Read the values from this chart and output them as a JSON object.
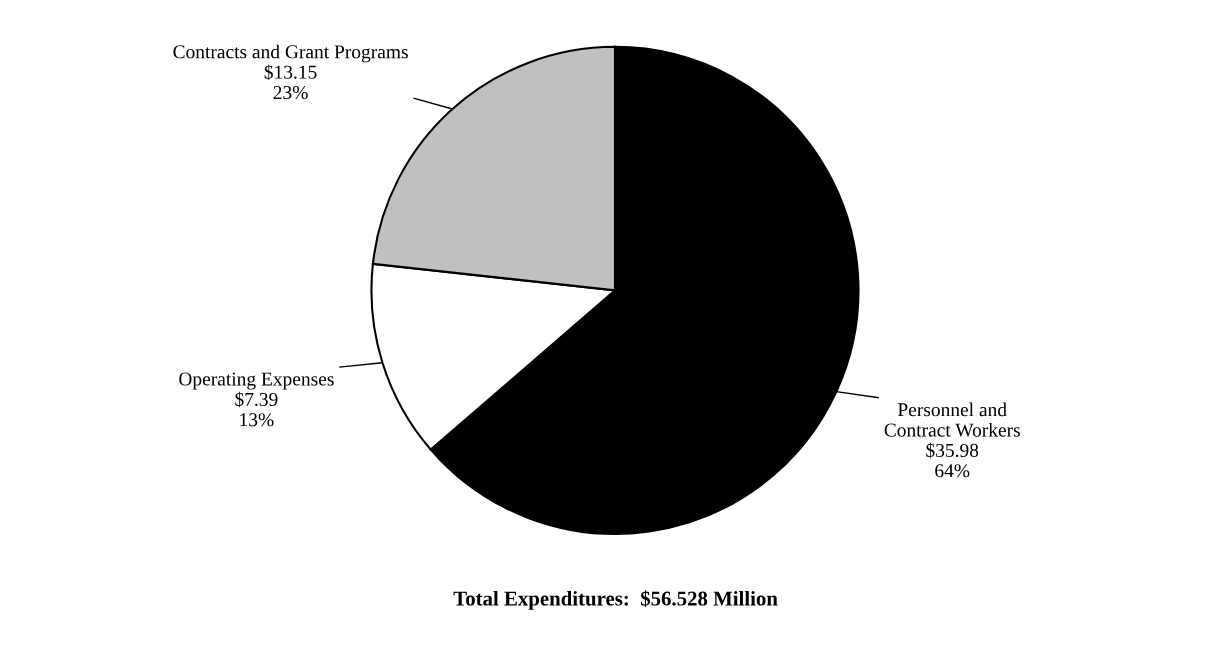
{
  "chart_data": {
    "type": "pie",
    "title": "Total Expenditures:  $56.528 Million",
    "categories": [
      "Personnel and\nContract Workers",
      "Operating Expenses",
      "Contracts and Grant Programs"
    ],
    "values": [
      35.98,
      7.39,
      13.15
    ],
    "colors": [
      "#000000",
      "#ffffff",
      "#c0c0c0"
    ],
    "value_labels": [
      "$35.98\n64%",
      "$7.39\n13%",
      "$13.15\n23%"
    ],
    "legend": false
  }
}
